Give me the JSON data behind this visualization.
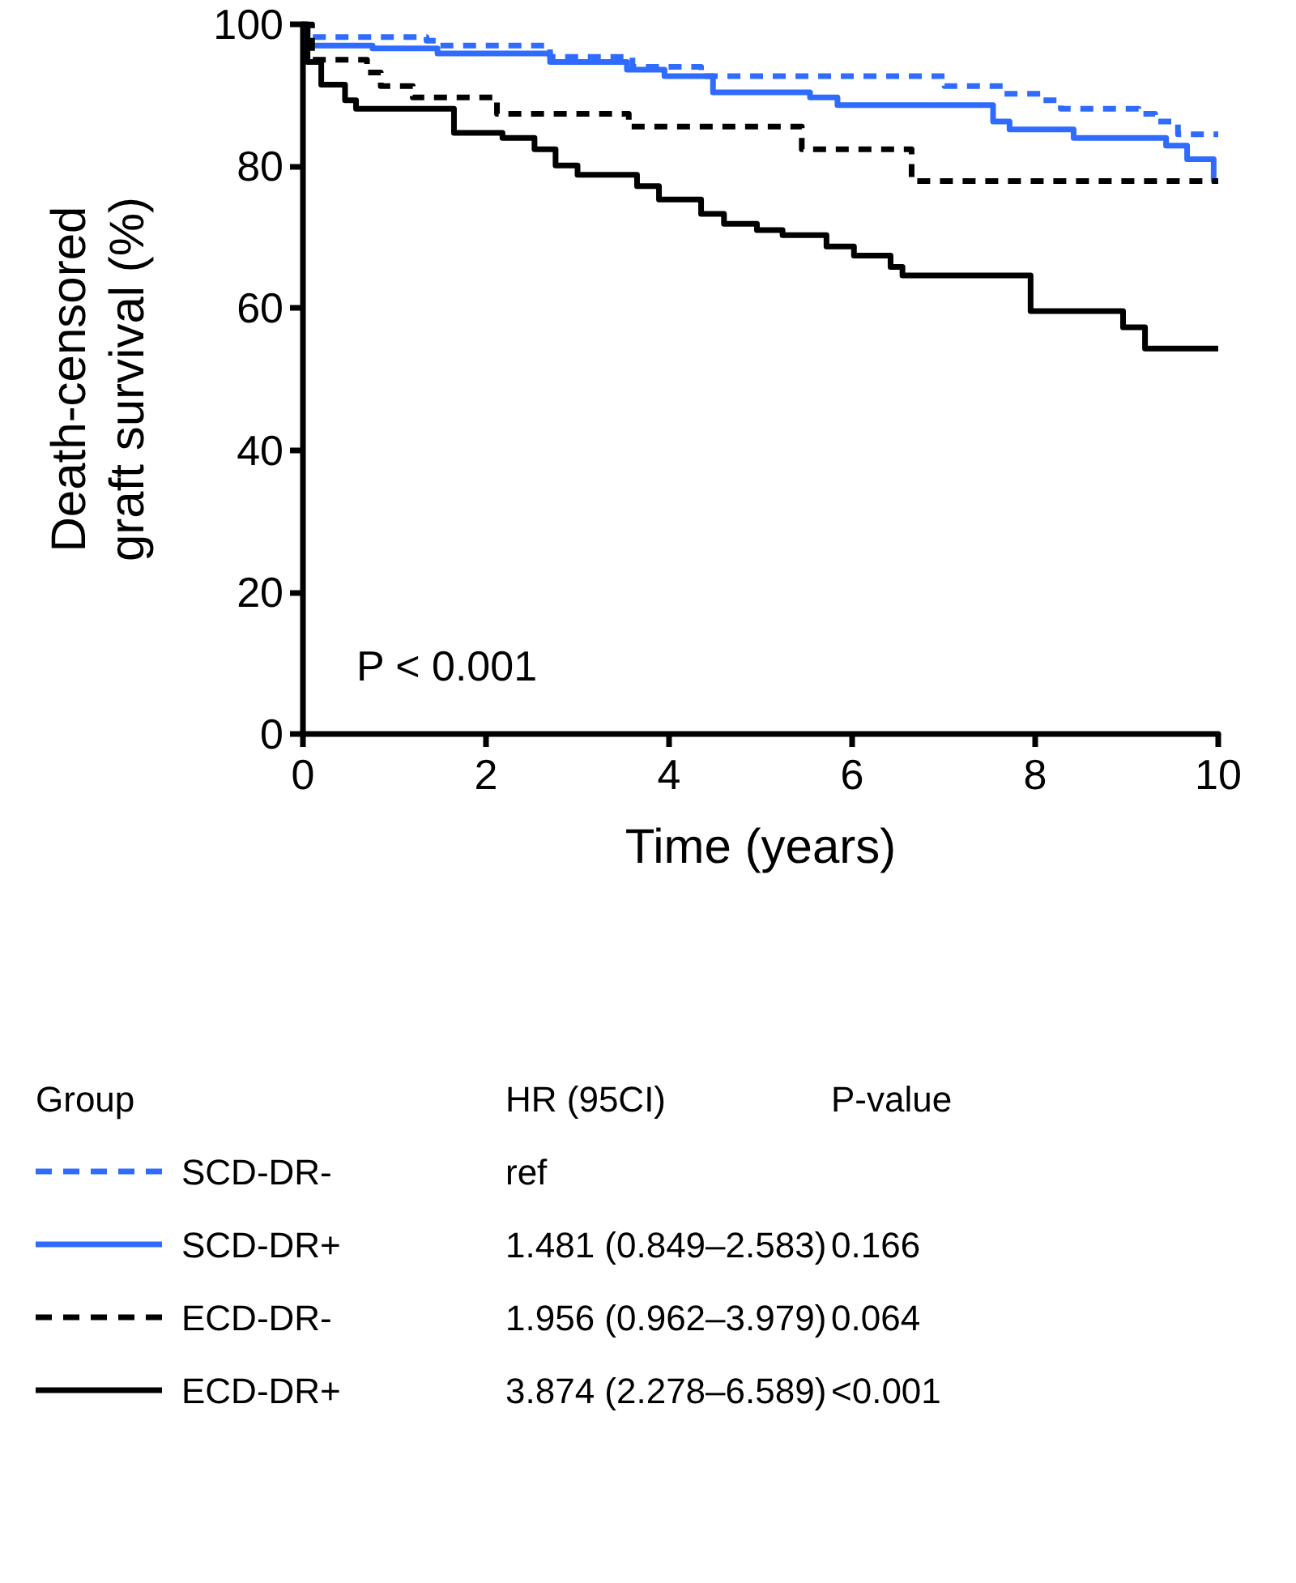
{
  "chart_data": {
    "type": "step",
    "xlabel": "Time (years)",
    "ylabel": "Death-censored\ngraft survival (%)",
    "xlim": [
      0,
      10
    ],
    "xticks": [
      0,
      2,
      4,
      6,
      8,
      10
    ],
    "ylim": [
      0,
      100
    ],
    "yticks": [
      0,
      20,
      40,
      60,
      80,
      100
    ],
    "grid": false,
    "legend": "bottom",
    "marker": "none",
    "annotations": [
      "P < 0.001",
      "Group",
      "HR (95CI)",
      "P-value",
      "ref",
      "1.481 (0.849–2.583)",
      "0.166",
      "1.956 (0.962–3.979)",
      "0.064",
      "3.874 (2.278–6.589)",
      "<0.001"
    ],
    "series": [
      {
        "name": "SCD-DR-",
        "color": "#2f6bff",
        "line_style": "dashed",
        "x": [
          0,
          0.05,
          1.35,
          1.47,
          2.7,
          3.6,
          4.35,
          6.96,
          7.01,
          7.66,
          8.07,
          8.28,
          9.13,
          9.31,
          9.56,
          10
        ],
        "values": [
          100,
          98.2,
          97.7,
          97.0,
          95.4,
          94.0,
          92.7,
          92.7,
          91.3,
          90.2,
          89.3,
          88.1,
          87.4,
          86.3,
          84.5,
          84.5
        ]
      },
      {
        "name": "SCD-DR+",
        "color": "#2f6bff",
        "line_style": "solid",
        "x": [
          0,
          0.05,
          0.76,
          1.47,
          2.7,
          3.54,
          3.95,
          4.48,
          5.54,
          5.84,
          7.54,
          7.72,
          8.42,
          9.43,
          9.66,
          9.95,
          10
        ],
        "values": [
          100,
          97.0,
          96.6,
          95.9,
          94.7,
          93.6,
          92.7,
          90.4,
          89.7,
          88.6,
          86.3,
          85.2,
          84.0,
          82.9,
          81.0,
          77.9,
          77.9
        ]
      },
      {
        "name": "ECD-DR-",
        "color": "#000000",
        "line_style": "dashed",
        "x": [
          0,
          0.1,
          0.7,
          0.85,
          1.2,
          2.12,
          3.56,
          5.45,
          6.65,
          10
        ],
        "values": [
          100,
          95.0,
          93.2,
          91.3,
          89.7,
          87.4,
          85.6,
          82.4,
          77.9,
          77.9
        ]
      },
      {
        "name": "ECD-DR+",
        "color": "#000000",
        "line_style": "solid",
        "x": [
          0,
          0.05,
          0.2,
          0.46,
          0.58,
          1.65,
          2.18,
          2.53,
          2.76,
          3.0,
          3.65,
          3.89,
          4.35,
          4.6,
          4.96,
          5.24,
          5.72,
          6.02,
          6.42,
          6.55,
          7.95,
          8.96,
          9.2,
          10
        ],
        "values": [
          100,
          94.7,
          91.5,
          89.3,
          88.1,
          84.7,
          84.0,
          82.4,
          80.1,
          78.8,
          77.2,
          75.3,
          73.3,
          71.9,
          71.0,
          70.3,
          68.7,
          67.4,
          65.8,
          64.6,
          59.6,
          57.3,
          54.3,
          54.3
        ]
      }
    ]
  }
}
